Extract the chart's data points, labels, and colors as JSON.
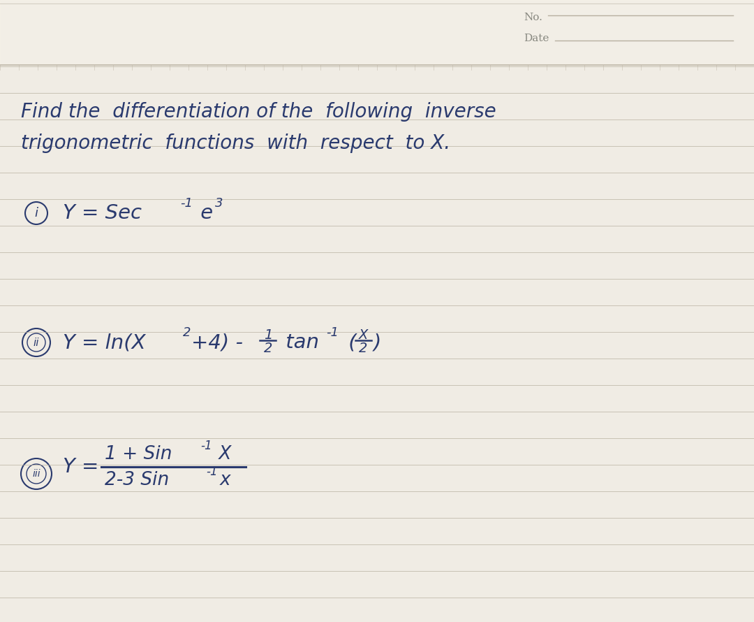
{
  "background_color": "#e8e4dc",
  "paper_color": "#f0ece4",
  "line_color": "#b8b0a0",
  "ink_color": "#2a3a6e",
  "no_label": "No.",
  "date_label": "Date",
  "title_line1": "Find the  differentiation of the  following  inverse",
  "title_line2": "trigonometric  functions  with  respect  to X.",
  "eq1_label": "i",
  "eq1_base": "Y = Sec",
  "eq1_sup1": "-1",
  "eq1_e": " e",
  "eq1_sup2": "3",
  "eq2_label": "ii",
  "eq2_base": "Y = ln(X",
  "eq2_sup1": "2",
  "eq2_mid": "+4) -",
  "eq2_tan": " tan",
  "eq2_sup2": "-1",
  "eq3_label": "iii",
  "eq3_y": "Y =",
  "eq3_num": "1 + Sin",
  "eq3_num_sup": "-1",
  "eq3_num_x": " X",
  "eq3_den": "2-3 Sin",
  "eq3_den_sup": "-1",
  "eq3_den_x": "x",
  "figsize": [
    10.8,
    8.9
  ],
  "dpi": 100
}
